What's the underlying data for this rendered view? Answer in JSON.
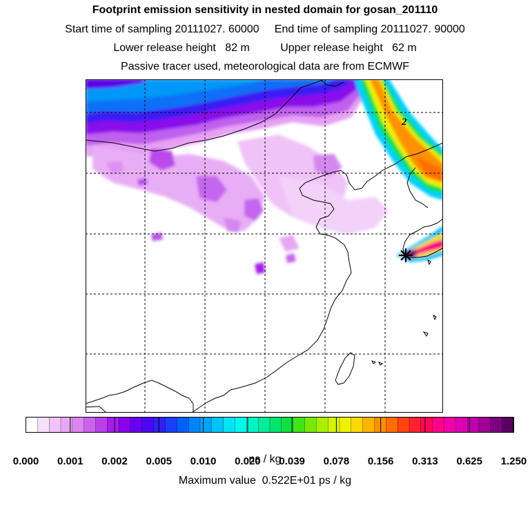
{
  "header": {
    "title": "Footprint emission sensitivity in nested domain for gosan_201110",
    "sampling_line": "Start time of sampling 20111027. 60000     End time of sampling 20111027. 90000",
    "release_line": "Lower release height   82 m          Upper release height   62 m",
    "tracer_line": "Passive tracer used, meteorological data are from ECMWF"
  },
  "map": {
    "contour_label": "2",
    "site_marker_icon": "star-marker",
    "grid": true
  },
  "colorbar": {
    "ticks": [
      "0.000",
      "0.001",
      "0.002",
      "0.005",
      "0.010",
      "0.020",
      "0.039",
      "0.078",
      "0.156",
      "0.313",
      "0.625",
      "1.250"
    ],
    "colors": [
      "#ffffff",
      "#f8e0fb",
      "#f0c4f8",
      "#e8a6f4",
      "#dc84f0",
      "#cc62ec",
      "#ba40ea",
      "#a41cea",
      "#8a00ec",
      "#6a00f0",
      "#4c08f2",
      "#3020f4",
      "#1840f6",
      "#0060f8",
      "#0084f8",
      "#00a4fa",
      "#00c4fa",
      "#00e4fa",
      "#00f8ee",
      "#00f4c4",
      "#00ec98",
      "#00e46c",
      "#10e040",
      "#40e418",
      "#78ea08",
      "#a8f000",
      "#d4f400",
      "#f0f000",
      "#ffd800",
      "#ffb400",
      "#ff9000",
      "#ff6c00",
      "#ff4410",
      "#ff2030",
      "#ff0858",
      "#ff0088",
      "#f000a8",
      "#dc00b4",
      "#c000ac",
      "#a00098",
      "#7c0080",
      "#580060"
    ],
    "unit": "ns / kg",
    "max_value": "Maximum value  0.522E+01 ps / kg"
  }
}
